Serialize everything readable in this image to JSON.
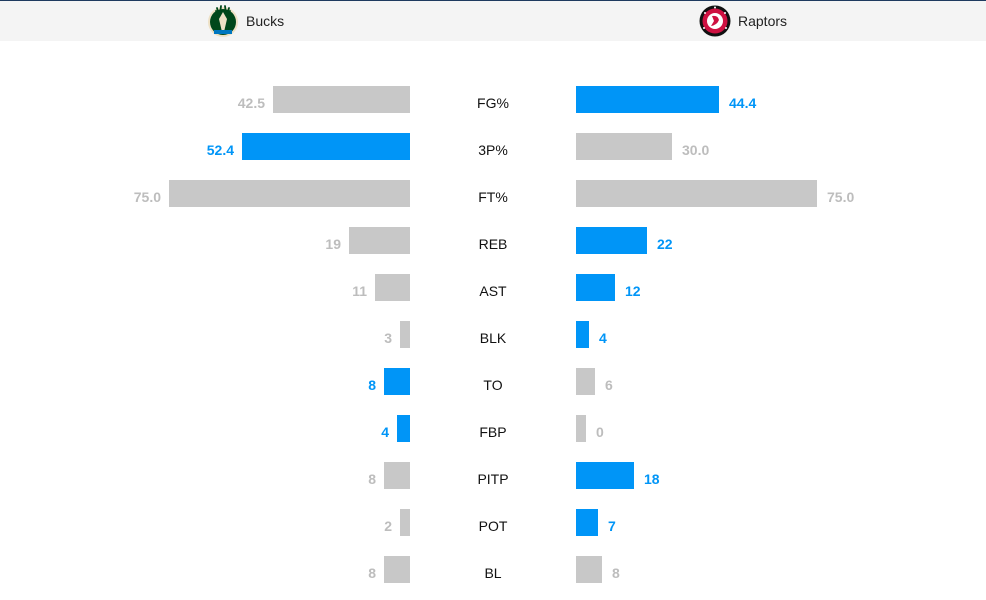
{
  "teams": {
    "left": {
      "name": "Bucks",
      "logo_icon": "bucks-logo-icon"
    },
    "right": {
      "name": "Raptors",
      "logo_icon": "raptors-logo-icon"
    }
  },
  "colors": {
    "leader": "#0095f7",
    "trailer": "#c8c8c8",
    "trailer_text": "#bdbdbd"
  },
  "stats": [
    {
      "label": "FG%",
      "left": "42.5",
      "right": "44.4",
      "left_value": 42.5,
      "right_value": 44.4,
      "leader": "right"
    },
    {
      "label": "3P%",
      "left": "52.4",
      "right": "30.0",
      "left_value": 52.4,
      "right_value": 30.0,
      "leader": "left"
    },
    {
      "label": "FT%",
      "left": "75.0",
      "right": "75.0",
      "left_value": 75.0,
      "right_value": 75.0,
      "leader": "none"
    },
    {
      "label": "REB",
      "left": "19",
      "right": "22",
      "left_value": 19,
      "right_value": 22,
      "leader": "right"
    },
    {
      "label": "AST",
      "left": "11",
      "right": "12",
      "left_value": 11,
      "right_value": 12,
      "leader": "right"
    },
    {
      "label": "BLK",
      "left": "3",
      "right": "4",
      "left_value": 3,
      "right_value": 4,
      "leader": "right"
    },
    {
      "label": "TO",
      "left": "8",
      "right": "6",
      "left_value": 8,
      "right_value": 6,
      "leader": "left"
    },
    {
      "label": "FBP",
      "left": "4",
      "right": "0",
      "left_value": 4,
      "right_value": 0,
      "leader": "left"
    },
    {
      "label": "PITP",
      "left": "8",
      "right": "18",
      "left_value": 8,
      "right_value": 18,
      "leader": "right"
    },
    {
      "label": "POT",
      "left": "2",
      "right": "7",
      "left_value": 2,
      "right_value": 7,
      "leader": "right"
    },
    {
      "label": "BL",
      "left": "8",
      "right": "8",
      "left_value": 8,
      "right_value": 8,
      "leader": "none"
    }
  ]
}
